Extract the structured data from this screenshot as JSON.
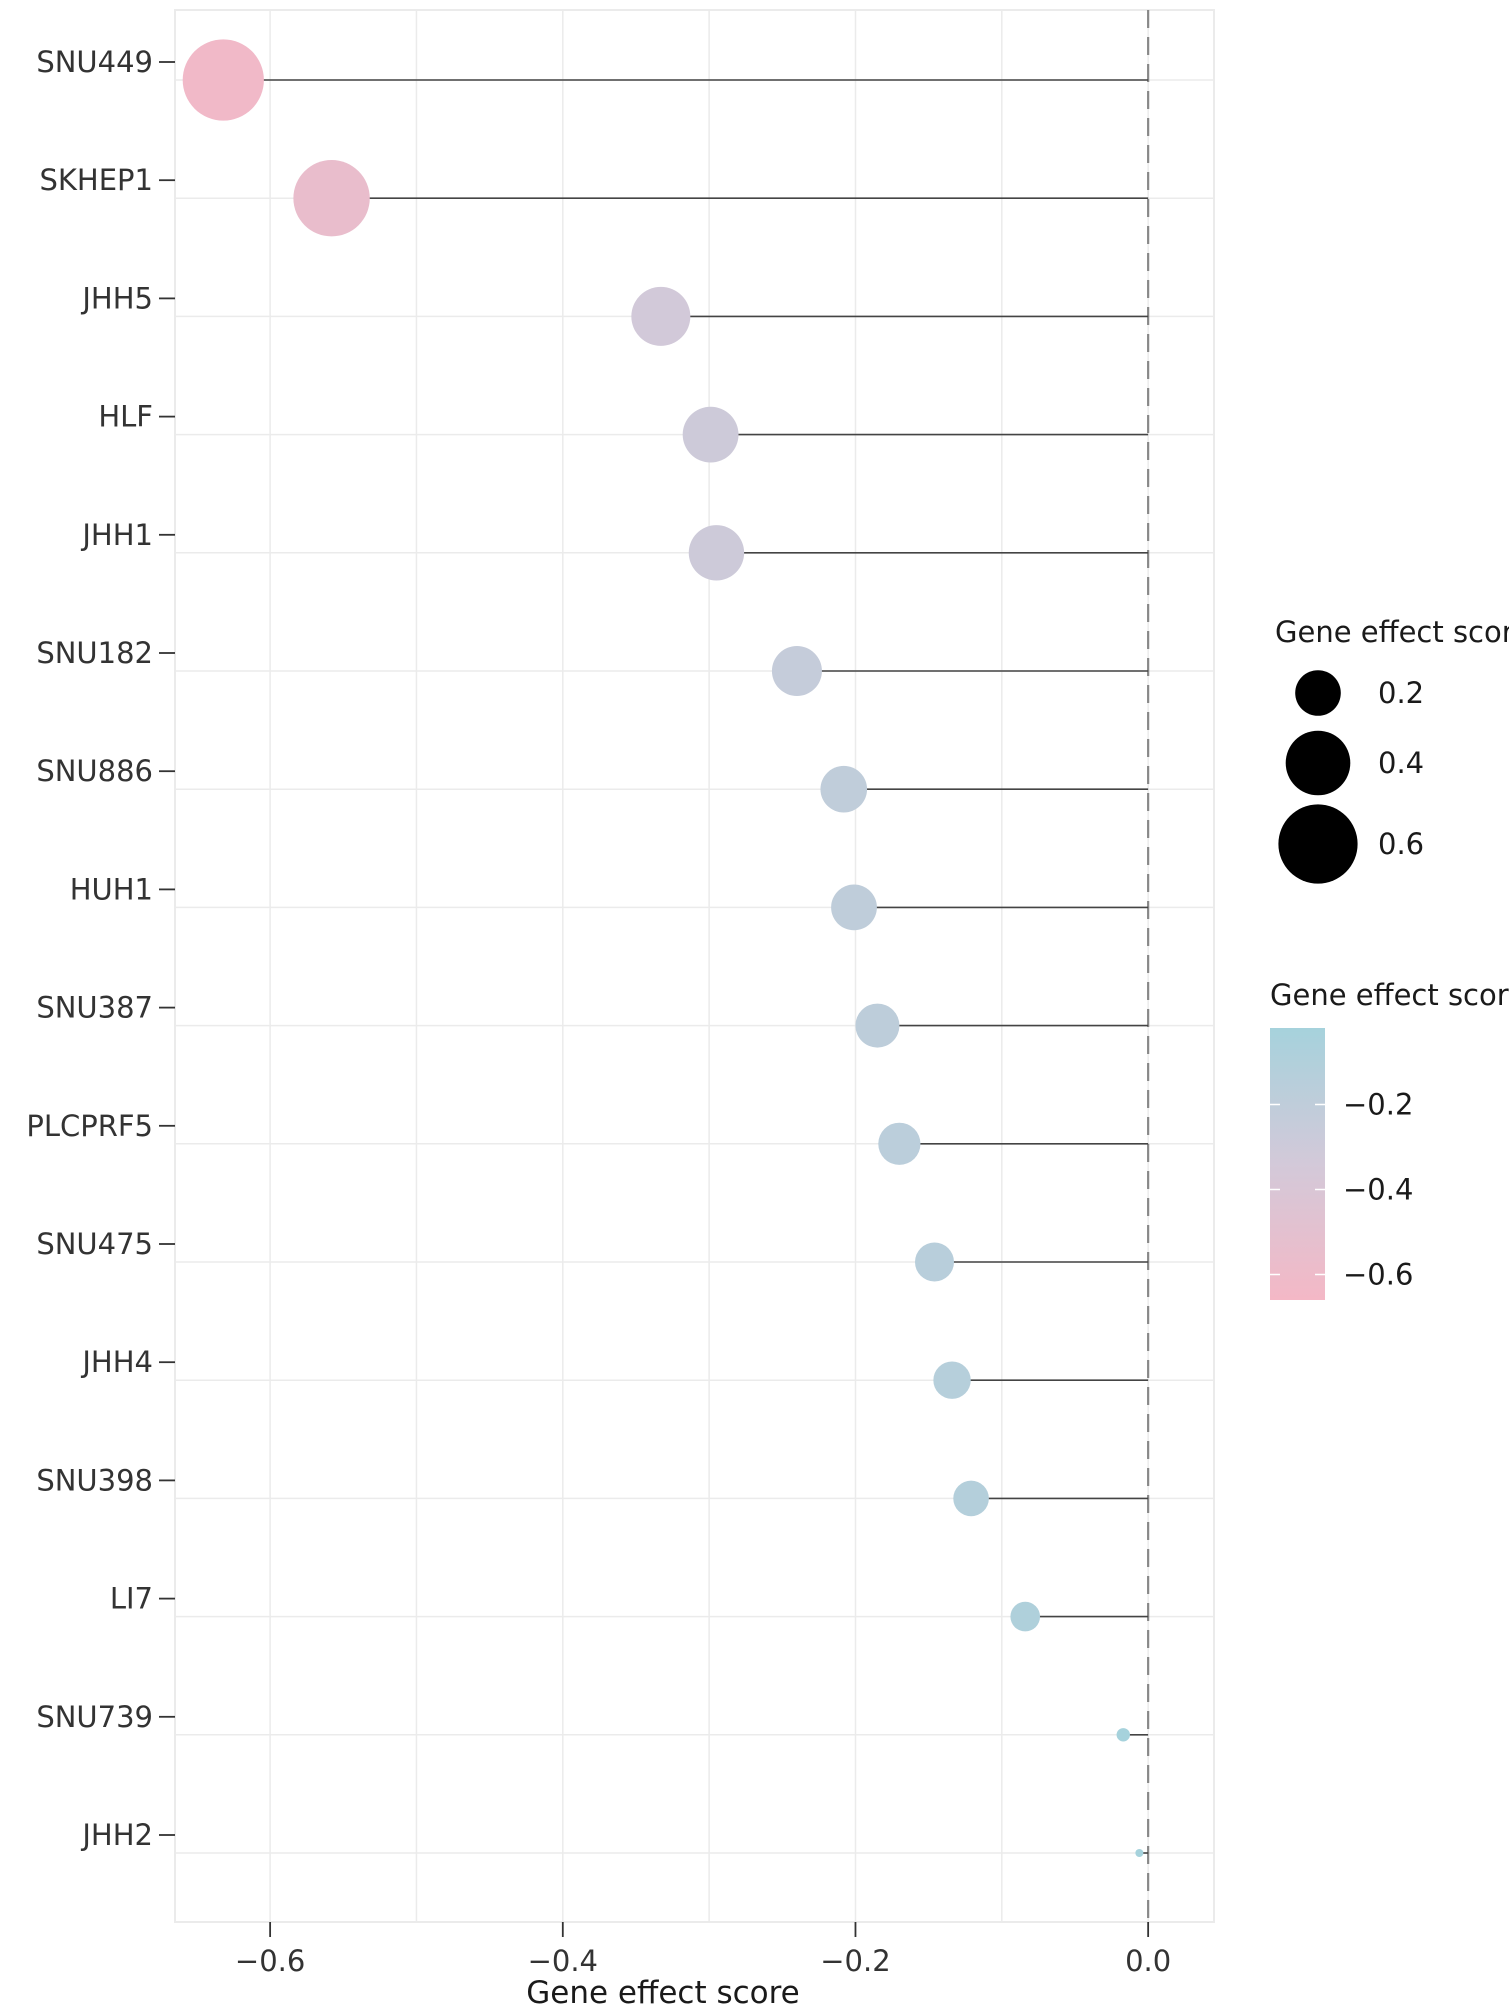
{
  "chart_data": {
    "type": "lollipop",
    "xlabel": "Gene effect score",
    "xlim": [
      -0.665,
      0.045
    ],
    "xticks": [
      -0.6,
      -0.4,
      -0.2,
      0.0
    ],
    "xtick_labels": [
      "−0.6",
      "−0.4",
      "−0.2",
      "0.0"
    ],
    "reference_line": 0,
    "grid": true,
    "categories": [
      "SNU449",
      "SKHEP1",
      "JHH5",
      "HLF",
      "JHH1",
      "SNU182",
      "SNU886",
      "HUH1",
      "SNU387",
      "PLCPRF5",
      "SNU475",
      "JHH4",
      "SNU398",
      "LI7",
      "SNU739",
      "JHH2"
    ],
    "values": [
      -0.632,
      -0.558,
      -0.333,
      -0.299,
      -0.295,
      -0.24,
      -0.208,
      -0.201,
      -0.185,
      -0.17,
      -0.146,
      -0.134,
      -0.121,
      -0.084,
      -0.017,
      -0.006
    ],
    "size_legend": {
      "title": "Gene effect score",
      "values": [
        0.2,
        0.4,
        0.6
      ],
      "labels": [
        "0.2",
        "0.4",
        "0.6"
      ]
    },
    "color_legend": {
      "title": "Gene effect score",
      "range": [
        -0.66,
        -0.02
      ],
      "ticks": [
        -0.2,
        -0.4,
        -0.6
      ],
      "tick_labels": [
        "−0.2",
        "−0.4",
        "−0.6"
      ],
      "low_color": "#f4b8c6",
      "mid_color": "#d3c9d9",
      "high_color": "#a6d2dc"
    },
    "stem_color": "#444444",
    "zero_line_color": "#888888",
    "grid_color": "#ebebeb"
  }
}
